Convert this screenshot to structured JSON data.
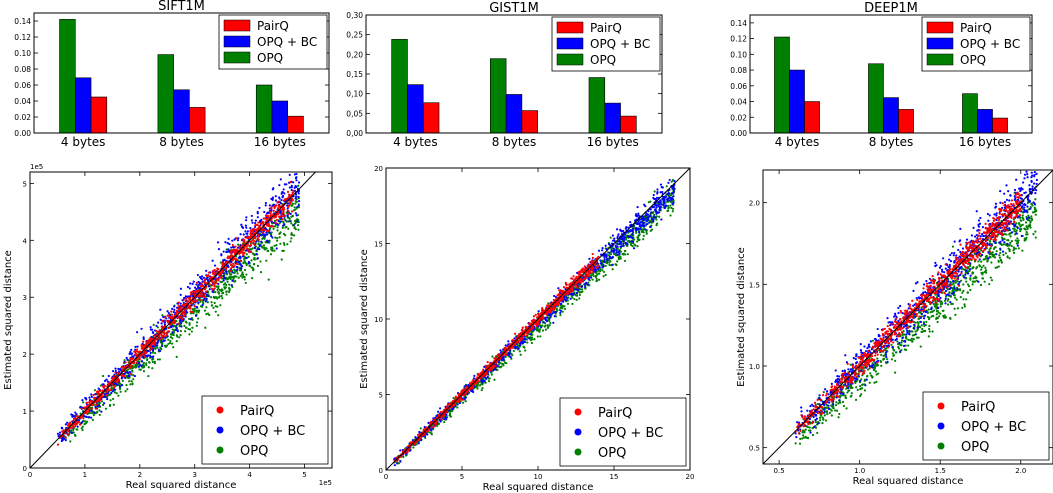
{
  "chart_data": [
    {
      "type": "bar",
      "title": "SIFT1M",
      "categories": [
        "4 bytes",
        "8 bytes",
        "16 bytes"
      ],
      "series": [
        {
          "name": "OPQ",
          "color": "#008000",
          "values": [
            0.142,
            0.098,
            0.06
          ]
        },
        {
          "name": "OPQ + BC",
          "color": "#0000ff",
          "values": [
            0.069,
            0.054,
            0.04
          ]
        },
        {
          "name": "PairQ",
          "color": "#ff0000",
          "values": [
            0.045,
            0.032,
            0.021
          ]
        }
      ],
      "legend_order": [
        "PairQ",
        "OPQ + BC",
        "OPQ"
      ],
      "legend": "top-right",
      "ylim": [
        0,
        0.15
      ],
      "yticks": [
        "0.00",
        "0.02",
        "0.04",
        "0.06",
        "0.08",
        "0.10",
        "0.12",
        "0.14"
      ]
    },
    {
      "type": "bar",
      "title": "GIST1M",
      "categories": [
        "4 bytes",
        "8 bytes",
        "16 bytes"
      ],
      "series": [
        {
          "name": "OPQ",
          "color": "#008000",
          "values": [
            0.238,
            0.189,
            0.141
          ]
        },
        {
          "name": "OPQ + BC",
          "color": "#0000ff",
          "values": [
            0.123,
            0.098,
            0.076
          ]
        },
        {
          "name": "PairQ",
          "color": "#ff0000",
          "values": [
            0.077,
            0.057,
            0.043
          ]
        }
      ],
      "legend_order": [
        "PairQ",
        "OPQ + BC",
        "OPQ"
      ],
      "legend": "top-right",
      "ylim": [
        0,
        0.3
      ],
      "yticks": [
        "0,00",
        "0,05",
        "0,10",
        "0,15",
        "0,20",
        "0,25",
        "0,30"
      ]
    },
    {
      "type": "bar",
      "title": "DEEP1M",
      "categories": [
        "4 bytes",
        "8 bytes",
        "16 bytes"
      ],
      "series": [
        {
          "name": "OPQ",
          "color": "#008000",
          "values": [
            0.122,
            0.088,
            0.05
          ]
        },
        {
          "name": "OPQ + BC",
          "color": "#0000ff",
          "values": [
            0.08,
            0.045,
            0.03
          ]
        },
        {
          "name": "PairQ",
          "color": "#ff0000",
          "values": [
            0.04,
            0.03,
            0.019
          ]
        }
      ],
      "legend_order": [
        "PairQ",
        "OPQ + BC",
        "OPQ"
      ],
      "legend": "top-right",
      "ylim": [
        0,
        0.15
      ],
      "yticks": [
        "0.00",
        "0.02",
        "0.04",
        "0.06",
        "0.08",
        "0.10",
        "0.12",
        "0.14"
      ]
    },
    {
      "type": "scatter",
      "xlabel": "Real squared distance",
      "ylabel": "Estimated squared distance",
      "xlim": [
        0,
        5.5
      ],
      "ylim": [
        0,
        5.2
      ],
      "xticks": [
        "0",
        "1",
        "2",
        "3",
        "4",
        "5"
      ],
      "yticks": [
        "0",
        "1",
        "2",
        "3",
        "4",
        "5"
      ],
      "x_offset_text": "1e5",
      "y_offset_text": "1e5",
      "diagonal": true,
      "legend": "lower-right",
      "series": [
        {
          "name": "PairQ",
          "color": "#ff0000",
          "cluster": {
            "x_range": [
              0.5,
              4.8
            ],
            "spread": 0.12,
            "bias": 0
          }
        },
        {
          "name": "OPQ + BC",
          "color": "#0000ff",
          "cluster": {
            "x_range": [
              0.5,
              4.9
            ],
            "spread": 0.25,
            "bias": 0.02
          }
        },
        {
          "name": "OPQ",
          "color": "#008000",
          "cluster": {
            "x_range": [
              0.6,
              4.9
            ],
            "spread": 0.25,
            "bias": -0.35
          }
        }
      ]
    },
    {
      "type": "scatter",
      "xlabel": "Real squared distance",
      "ylabel": "Estimated squared distance",
      "xlim": [
        0,
        20
      ],
      "ylim": [
        0,
        20
      ],
      "xticks": [
        "0",
        "5",
        "10",
        "15",
        "20"
      ],
      "yticks": [
        "0",
        "5",
        "10",
        "15",
        "20"
      ],
      "diagonal": true,
      "legend": "lower-right",
      "series": [
        {
          "name": "PairQ",
          "color": "#ff0000",
          "cluster": {
            "x_range": [
              0.5,
              14
            ],
            "spread": 0.25,
            "bias": 0
          }
        },
        {
          "name": "OPQ + BC",
          "color": "#0000ff",
          "cluster": {
            "x_range": [
              0.5,
              19
            ],
            "spread": 0.5,
            "bias": -0.3
          }
        },
        {
          "name": "OPQ",
          "color": "#008000",
          "cluster": {
            "x_range": [
              0.5,
              19
            ],
            "spread": 0.55,
            "bias": -0.9
          }
        }
      ]
    },
    {
      "type": "scatter",
      "xlabel": "Real squared distance",
      "ylabel": "Estimated squared distance",
      "xlim": [
        0.4,
        2.2
      ],
      "ylim": [
        0.4,
        2.2
      ],
      "xticks": [
        "0.5",
        "1.0",
        "1.5",
        "2.0"
      ],
      "yticks": [
        "0.5",
        "1.0",
        "1.5",
        "2.0"
      ],
      "diagonal": true,
      "legend": "lower-right",
      "series": [
        {
          "name": "PairQ",
          "color": "#ff0000",
          "cluster": {
            "x_range": [
              0.6,
              2.0
            ],
            "spread": 0.05,
            "bias": 0
          }
        },
        {
          "name": "OPQ + BC",
          "color": "#0000ff",
          "cluster": {
            "x_range": [
              0.6,
              2.1
            ],
            "spread": 0.09,
            "bias": 0.0
          }
        },
        {
          "name": "OPQ",
          "color": "#008000",
          "cluster": {
            "x_range": [
              0.6,
              2.1
            ],
            "spread": 0.09,
            "bias": -0.15
          }
        }
      ]
    }
  ]
}
